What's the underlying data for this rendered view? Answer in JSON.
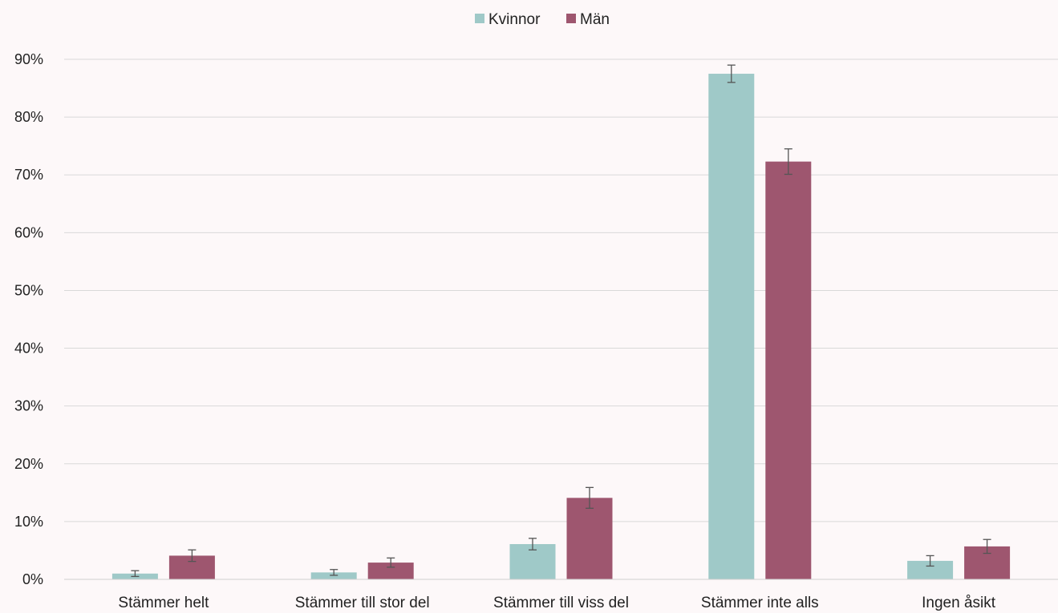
{
  "chart_data": {
    "type": "bar",
    "categories": [
      "Stämmer helt",
      "Stämmer till stor del",
      "Stämmer till viss del",
      "Stämmer inte alls",
      "Ingen åsikt"
    ],
    "series": [
      {
        "name": "Kvinnor",
        "color": "#9fc9c8",
        "values": [
          1.0,
          1.2,
          6.1,
          87.5,
          3.2
        ],
        "error": [
          0.5,
          0.5,
          1.0,
          1.5,
          0.9
        ]
      },
      {
        "name": "Män",
        "color": "#9e566f",
        "values": [
          4.1,
          2.9,
          14.1,
          72.3,
          5.7
        ],
        "error": [
          1.0,
          0.8,
          1.8,
          2.2,
          1.2
        ]
      }
    ],
    "y_ticks": [
      "0%",
      "10%",
      "20%",
      "30%",
      "40%",
      "50%",
      "60%",
      "70%",
      "80%",
      "90%"
    ],
    "ylim": [
      0,
      90
    ],
    "grid": true,
    "legend_position": "top-center",
    "title": "",
    "xlabel": "",
    "ylabel": ""
  }
}
